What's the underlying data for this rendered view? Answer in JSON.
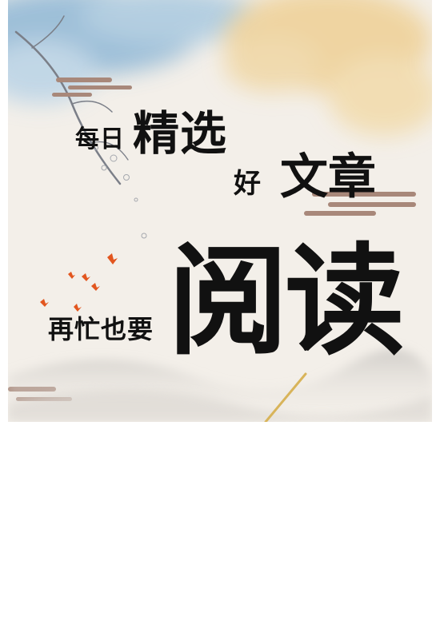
{
  "poster": {
    "line1_small": "每日",
    "line1_large": "精选",
    "line2_small": "好",
    "line2_large": "文章",
    "line3_small": "再忙也要",
    "line3_large": "阅读"
  },
  "colors": {
    "background": "#f3efe9",
    "ink": "#111111",
    "wash_blue": "#8fb7d6",
    "wash_gold": "#efd29a",
    "cloud_stripe": "#a8887a",
    "bird_orange": "#e2561f"
  }
}
